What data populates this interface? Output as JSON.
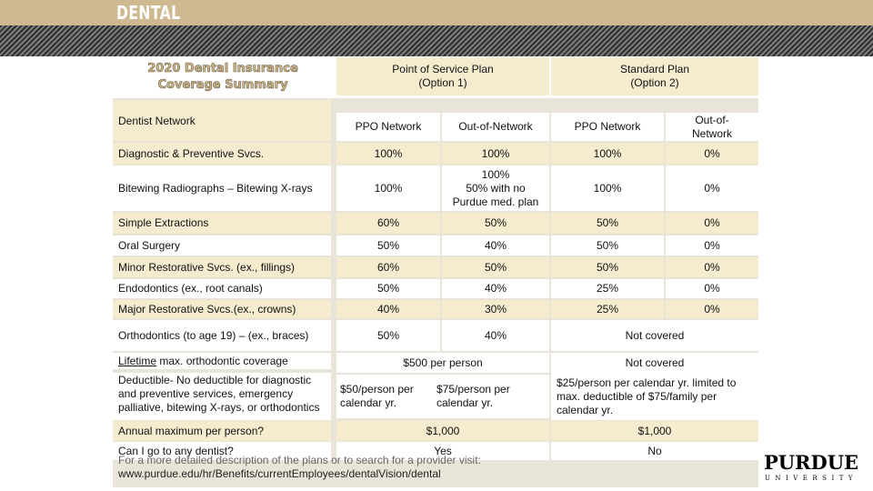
{
  "header": {
    "title": "DENTAL"
  },
  "summary_title": [
    "2020 Dental Insurance",
    "Coverage Summary"
  ],
  "plans": {
    "pos": [
      "Point of Service Plan",
      "(Option 1)"
    ],
    "standard": [
      "Standard Plan",
      "(Option 2)"
    ]
  },
  "columns": {
    "label": "Dentist Network",
    "pos_ppo": "PPO Network",
    "pos_out": "Out-of-Network",
    "std_ppo": "PPO Network",
    "std_out": [
      "Out-of-",
      "Network"
    ]
  },
  "rows": [
    {
      "label": "Diagnostic & Preventive Svcs.",
      "v": [
        "100%",
        "100%",
        "100%",
        "0%"
      ]
    },
    {
      "label": "Bitewing Radiographs – Bitewing X-rays",
      "v": [
        "100%",
        [
          "100%",
          "50% with no",
          "Purdue med. plan"
        ],
        "100%",
        "0%"
      ]
    },
    {
      "label": "Simple Extractions",
      "v": [
        "60%",
        "50%",
        "50%",
        "0%"
      ]
    },
    {
      "label": "Oral Surgery",
      "v": [
        "50%",
        "40%",
        "50%",
        "0%"
      ]
    },
    {
      "label": "Minor Restorative Svcs. (ex., fillings)",
      "v": [
        "60%",
        "50%",
        "50%",
        "0%"
      ]
    },
    {
      "label": "Endodontics (ex., root canals)",
      "v": [
        "50%",
        "40%",
        "25%",
        "0%"
      ]
    },
    {
      "label": "Major Restorative Svcs.(ex., crowns)",
      "v": [
        "40%",
        "30%",
        "25%",
        "0%"
      ]
    }
  ],
  "ortho": {
    "label": "Orthodontics (to age 19) – (ex., braces)",
    "pos_ppo": "50%",
    "pos_out": "40%",
    "std": "Not covered"
  },
  "lifetime": {
    "label_underlined": "Lifetime",
    "label_rest": " max. orthodontic coverage",
    "pos": "$500 per person",
    "std": "Not covered"
  },
  "deductible": {
    "label_lead": "Deductible",
    "label_rest": "- No deductible for diagnostic and preventive services, emergency palliative, bitewing X-rays, or orthodontics",
    "pos_ppo": "$50/person per calendar yr.",
    "pos_out": "$75/person per calendar yr.",
    "std": "$25/person per calendar yr. limited to max. deductible of $75/family per calendar yr."
  },
  "annual": {
    "label": "Annual maximum per person?",
    "pos": "$1,000",
    "std": "$1,000"
  },
  "anydentist": {
    "label": "Can I go to any dentist?",
    "pos": "Yes",
    "std": "No"
  },
  "footer": {
    "line1": "For a more detailed description of the plans or to search for a provider visit:",
    "url": "www.purdue.edu/hr/Benefits/currentEmployees/dentalVision/dental"
  },
  "logo": {
    "main": "PURDUE",
    "sub": "UNIVERSITY"
  }
}
